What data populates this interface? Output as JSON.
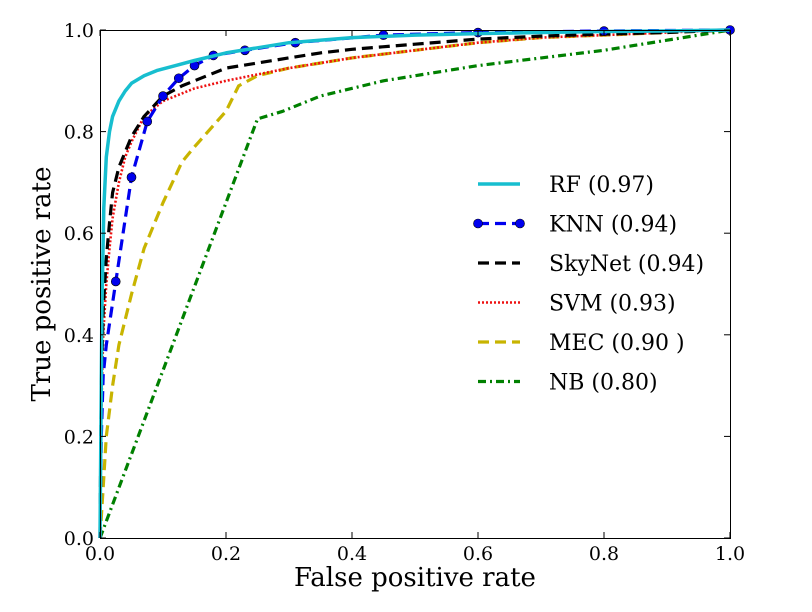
{
  "chart_data": {
    "type": "line",
    "title": "",
    "xlabel": "False positive rate",
    "ylabel": "True positive rate",
    "xlim": [
      0.0,
      1.0
    ],
    "ylim": [
      0.0,
      1.0
    ],
    "xticks": [
      "0.0",
      "0.2",
      "0.4",
      "0.6",
      "0.8",
      "1.0"
    ],
    "yticks": [
      "0.0",
      "0.2",
      "0.4",
      "0.6",
      "0.8",
      "1.0"
    ],
    "grid": false,
    "legend_position": "center-right",
    "series": [
      {
        "name": "RF (0.97)",
        "color": "#17becf",
        "style": "solid",
        "x": [
          0.0,
          0.003,
          0.006,
          0.01,
          0.015,
          0.02,
          0.03,
          0.04,
          0.05,
          0.07,
          0.09,
          0.12,
          0.15,
          0.2,
          0.25,
          0.3,
          0.4,
          0.5,
          0.6,
          0.7,
          0.8,
          0.9,
          1.0
        ],
        "y": [
          0.0,
          0.45,
          0.65,
          0.75,
          0.8,
          0.83,
          0.86,
          0.88,
          0.895,
          0.91,
          0.92,
          0.93,
          0.94,
          0.955,
          0.965,
          0.975,
          0.985,
          0.99,
          0.993,
          0.995,
          0.997,
          0.998,
          1.0
        ]
      },
      {
        "name": "KNN (0.94)",
        "color": "#0000ee",
        "style": "dashed-markers",
        "x": [
          0.0,
          0.002,
          0.005,
          0.01,
          0.025,
          0.05,
          0.075,
          0.1,
          0.125,
          0.15,
          0.18,
          0.23,
          0.31,
          0.45,
          0.6,
          0.8,
          1.0
        ],
        "y": [
          0.0,
          0.2,
          0.32,
          0.38,
          0.505,
          0.71,
          0.82,
          0.87,
          0.905,
          0.93,
          0.95,
          0.96,
          0.975,
          0.99,
          0.995,
          0.998,
          1.0
        ]
      },
      {
        "name": "SkyNet (0.94)",
        "color": "#000000",
        "style": "dashed",
        "x": [
          0.0,
          0.002,
          0.005,
          0.01,
          0.015,
          0.02,
          0.03,
          0.04,
          0.05,
          0.07,
          0.1,
          0.13,
          0.17,
          0.2,
          0.25,
          0.3,
          0.35,
          0.4,
          0.5,
          0.6,
          0.7,
          0.8,
          0.9,
          1.0
        ],
        "y": [
          0.0,
          0.3,
          0.45,
          0.55,
          0.62,
          0.68,
          0.73,
          0.76,
          0.79,
          0.83,
          0.87,
          0.89,
          0.91,
          0.925,
          0.935,
          0.945,
          0.955,
          0.962,
          0.972,
          0.982,
          0.988,
          0.992,
          0.995,
          1.0
        ]
      },
      {
        "name": "SVM (0.93)",
        "color": "#ee1111",
        "style": "dotted",
        "x": [
          0.0,
          0.002,
          0.005,
          0.01,
          0.015,
          0.02,
          0.03,
          0.04,
          0.05,
          0.07,
          0.1,
          0.15,
          0.2,
          0.3,
          0.4,
          0.5,
          0.6,
          0.7,
          0.8,
          0.9,
          1.0
        ],
        "y": [
          0.0,
          0.25,
          0.4,
          0.5,
          0.57,
          0.63,
          0.7,
          0.75,
          0.78,
          0.83,
          0.86,
          0.885,
          0.9,
          0.925,
          0.945,
          0.96,
          0.975,
          0.985,
          0.99,
          0.995,
          1.0
        ]
      },
      {
        "name": "MEC (0.90 )",
        "color": "#c8b400",
        "style": "dashed",
        "x": [
          0.0,
          0.005,
          0.01,
          0.02,
          0.03,
          0.05,
          0.07,
          0.1,
          0.13,
          0.15,
          0.2,
          0.22,
          0.25,
          0.3,
          0.4,
          0.5,
          0.6,
          0.7,
          0.8,
          0.9,
          1.0
        ],
        "y": [
          0.0,
          0.1,
          0.2,
          0.3,
          0.38,
          0.48,
          0.57,
          0.66,
          0.74,
          0.77,
          0.84,
          0.89,
          0.91,
          0.925,
          0.945,
          0.96,
          0.975,
          0.985,
          0.99,
          0.995,
          1.0
        ]
      },
      {
        "name": "NB (0.80)",
        "color": "#008000",
        "style": "dashdot",
        "x": [
          0.0,
          0.25,
          0.29,
          0.35,
          0.45,
          0.6,
          0.8,
          0.9,
          1.0
        ],
        "y": [
          0.0,
          0.825,
          0.84,
          0.87,
          0.9,
          0.93,
          0.96,
          0.98,
          1.0
        ]
      }
    ]
  }
}
